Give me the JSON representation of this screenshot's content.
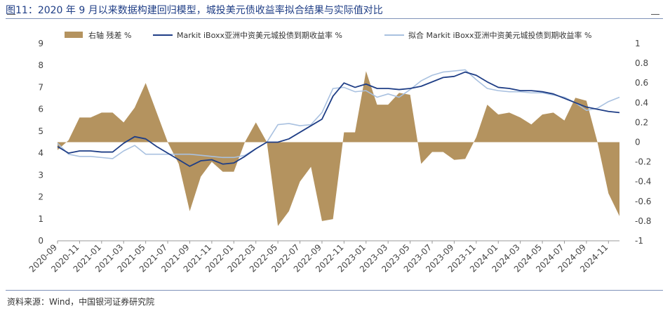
{
  "header": {
    "title": "图11：2020 年 9 月以来数据构建回归模型，城投美元债收益率拟合结果与实际值对比"
  },
  "footer": {
    "source": "资料来源：Wind，中国银河证券研究院"
  },
  "colors": {
    "residual_area": "#b4935f",
    "actual_line": "#1f3e86",
    "fitted_line": "#a9c1e0",
    "title": "#1f3e86"
  },
  "chart_data": {
    "type": "line",
    "legend": [
      "右轴 残差 %",
      "Markit iBoxx亚洲中资美元城投债到期收益率 %",
      "拟合 Markit iBoxx亚洲中资美元城投债到期收益率 %"
    ],
    "legend_position": "top",
    "x": [
      "2020-09",
      "2020-10",
      "2020-11",
      "2020-12",
      "2021-01",
      "2021-02",
      "2021-03",
      "2021-04",
      "2021-05",
      "2021-06",
      "2021-07",
      "2021-08",
      "2021-09",
      "2021-10",
      "2021-11",
      "2021-12",
      "2022-01",
      "2022-02",
      "2022-03",
      "2022-04",
      "2022-05",
      "2022-06",
      "2022-07",
      "2022-08",
      "2022-09",
      "2022-10",
      "2022-11",
      "2022-12",
      "2023-01",
      "2023-02",
      "2023-03",
      "2023-04",
      "2023-05",
      "2023-06",
      "2023-07",
      "2023-08",
      "2023-09",
      "2023-10",
      "2023-11",
      "2023-12",
      "2024-01",
      "2024-02",
      "2024-03",
      "2024-04",
      "2024-05",
      "2024-06",
      "2024-07",
      "2024-08",
      "2024-09",
      "2024-10",
      "2024-11",
      "2024-12"
    ],
    "x_tick_labels": [
      "2020-09",
      "2020-11",
      "2021-01",
      "2021-03",
      "2021-05",
      "2021-07",
      "2021-09",
      "2021-11",
      "2022-01",
      "2022-03",
      "2022-05",
      "2022-07",
      "2022-09",
      "2022-11",
      "2023-01",
      "2023-03",
      "2023-05",
      "2023-07",
      "2023-09",
      "2023-11",
      "2024-01",
      "2024-03",
      "2024-05",
      "2024-07",
      "2024-09",
      "2024-11"
    ],
    "series": [
      {
        "name": "Markit iBoxx亚洲中资美元城投债到期收益率 %",
        "axis": "left",
        "type": "line",
        "values": [
          4.3,
          4.0,
          4.1,
          4.1,
          4.05,
          4.05,
          4.45,
          4.75,
          4.65,
          4.3,
          4.0,
          3.7,
          3.4,
          3.65,
          3.7,
          3.5,
          3.55,
          3.85,
          4.2,
          4.5,
          4.5,
          4.65,
          4.95,
          5.25,
          5.55,
          6.6,
          7.2,
          7.0,
          7.15,
          6.95,
          6.95,
          6.9,
          6.95,
          7.05,
          7.25,
          7.45,
          7.5,
          7.7,
          7.55,
          7.25,
          7.0,
          6.95,
          6.85,
          6.85,
          6.8,
          6.7,
          6.5,
          6.3,
          6.1,
          6.0,
          5.9,
          5.85
        ]
      },
      {
        "name": "拟合 Markit iBoxx亚洲中资美元城投债到期收益率 %",
        "axis": "left",
        "type": "line",
        "values": [
          4.45,
          3.95,
          3.85,
          3.85,
          3.8,
          3.75,
          4.1,
          4.35,
          3.95,
          3.95,
          3.95,
          3.95,
          3.95,
          3.9,
          3.85,
          3.8,
          3.8,
          3.9,
          4.2,
          4.5,
          5.3,
          5.35,
          5.25,
          5.3,
          5.85,
          6.95,
          7.0,
          6.8,
          6.85,
          6.55,
          6.7,
          6.55,
          6.9,
          7.3,
          7.55,
          7.7,
          7.75,
          7.8,
          7.35,
          6.95,
          6.85,
          6.8,
          6.8,
          6.75,
          6.75,
          6.65,
          6.55,
          6.3,
          5.95,
          6.05,
          6.35,
          6.55
        ]
      },
      {
        "name": "右轴 残差 %",
        "axis": "right",
        "type": "area",
        "values": [
          -0.08,
          0.02,
          0.25,
          0.25,
          0.3,
          0.3,
          0.2,
          0.35,
          0.6,
          0.3,
          0.0,
          -0.22,
          -0.7,
          -0.35,
          -0.2,
          -0.3,
          -0.3,
          0.0,
          0.2,
          0.0,
          -0.85,
          -0.7,
          -0.4,
          -0.25,
          -0.8,
          -0.78,
          0.1,
          0.1,
          0.72,
          0.38,
          0.38,
          0.5,
          0.48,
          -0.22,
          -0.1,
          -0.1,
          -0.18,
          -0.17,
          0.05,
          0.38,
          0.28,
          0.3,
          0.25,
          0.18,
          0.28,
          0.3,
          0.22,
          0.45,
          0.42,
          0.0,
          -0.52,
          -0.75
        ]
      }
    ],
    "y_left": {
      "min": 0,
      "max": 9,
      "ticks": [
        0,
        1,
        2,
        3,
        4,
        5,
        6,
        7,
        8,
        9
      ]
    },
    "y_right": {
      "min": -1,
      "max": 1,
      "ticks": [
        "-1",
        "-0.8",
        "-0.6",
        "-0.4",
        "-0.2",
        "0",
        "0.2",
        "0.4",
        "0.6",
        "0.8",
        "1"
      ]
    },
    "grid": false
  }
}
